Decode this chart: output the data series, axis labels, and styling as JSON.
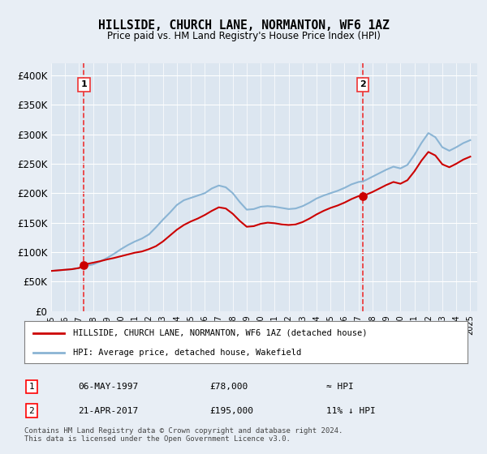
{
  "title": "HILLSIDE, CHURCH LANE, NORMANTON, WF6 1AZ",
  "subtitle": "Price paid vs. HM Land Registry's House Price Index (HPI)",
  "background_color": "#e8eef5",
  "plot_bg_color": "#dce6f0",
  "ylim": [
    0,
    420000
  ],
  "yticks": [
    0,
    50000,
    100000,
    150000,
    200000,
    250000,
    300000,
    350000,
    400000
  ],
  "ytick_labels": [
    "£0",
    "£50K",
    "£100K",
    "£150K",
    "£200K",
    "£250K",
    "£300K",
    "£350K",
    "£400K"
  ],
  "xlim_start": 1995,
  "xlim_end": 2025.5,
  "xticks": [
    1995,
    1996,
    1997,
    1998,
    1999,
    2000,
    2001,
    2002,
    2003,
    2004,
    2005,
    2006,
    2007,
    2008,
    2009,
    2010,
    2011,
    2012,
    2013,
    2014,
    2015,
    2016,
    2017,
    2018,
    2019,
    2020,
    2021,
    2022,
    2023,
    2024,
    2025
  ],
  "hpi_color": "#8ab4d4",
  "sale_color": "#cc0000",
  "dashed_line_color": "#ee3333",
  "marker_color": "#cc0000",
  "legend_line1": "HILLSIDE, CHURCH LANE, NORMANTON, WF6 1AZ (detached house)",
  "legend_line2": "HPI: Average price, detached house, Wakefield",
  "sale1_x": 1997.35,
  "sale1_y": 78000,
  "sale1_label": "1",
  "sale2_x": 2017.31,
  "sale2_y": 195000,
  "sale2_label": "2",
  "table_data": [
    [
      "1",
      "06-MAY-1997",
      "£78,000",
      "≈ HPI"
    ],
    [
      "2",
      "21-APR-2017",
      "£195,000",
      "11% ↓ HPI"
    ]
  ],
  "footer_text": "Contains HM Land Registry data © Crown copyright and database right 2024.\nThis data is licensed under the Open Government Licence v3.0.",
  "hpi_data_x": [
    1995,
    1995.5,
    1996,
    1996.5,
    1997,
    1997.35,
    1997.5,
    1998,
    1998.5,
    1999,
    1999.5,
    2000,
    2000.5,
    2001,
    2001.5,
    2002,
    2002.5,
    2003,
    2003.5,
    2004,
    2004.5,
    2005,
    2005.5,
    2006,
    2006.5,
    2007,
    2007.5,
    2008,
    2008.5,
    2009,
    2009.5,
    2010,
    2010.5,
    2011,
    2011.5,
    2012,
    2012.5,
    2013,
    2013.5,
    2014,
    2014.5,
    2015,
    2015.5,
    2016,
    2016.5,
    2017,
    2017.31,
    2017.5,
    2018,
    2018.5,
    2019,
    2019.5,
    2020,
    2020.5,
    2021,
    2021.5,
    2022,
    2022.5,
    2023,
    2023.5,
    2024,
    2024.5,
    2025
  ],
  "hpi_data_y": [
    68000,
    69000,
    70000,
    71000,
    73000,
    75000,
    76500,
    79000,
    84000,
    90000,
    97000,
    105000,
    112000,
    118000,
    123000,
    130000,
    142000,
    155000,
    167000,
    180000,
    188000,
    192000,
    196000,
    200000,
    208000,
    213000,
    210000,
    200000,
    185000,
    172000,
    173000,
    177000,
    178000,
    177000,
    175000,
    173000,
    174000,
    178000,
    184000,
    191000,
    196000,
    200000,
    204000,
    209000,
    215000,
    219000,
    220000,
    222000,
    228000,
    234000,
    240000,
    245000,
    242000,
    248000,
    265000,
    285000,
    302000,
    295000,
    278000,
    272000,
    278000,
    285000,
    290000
  ],
  "sale_line_x": [
    1995,
    1995.5,
    1996,
    1996.5,
    1997,
    1997.35,
    1997.5,
    1998,
    1998.5,
    1999,
    1999.5,
    2000,
    2000.5,
    2001,
    2001.5,
    2002,
    2002.5,
    2003,
    2003.5,
    2004,
    2004.5,
    2005,
    2005.5,
    2006,
    2006.5,
    2007,
    2007.5,
    2008,
    2008.5,
    2009,
    2009.5,
    2010,
    2010.5,
    2011,
    2011.5,
    2012,
    2012.5,
    2013,
    2013.5,
    2014,
    2014.5,
    2015,
    2015.5,
    2016,
    2016.5,
    2017,
    2017.31,
    2017.5,
    2018,
    2018.5,
    2019,
    2019.5,
    2020,
    2020.5,
    2021,
    2021.5,
    2022,
    2022.5,
    2023,
    2023.5,
    2024,
    2024.5,
    2025
  ],
  "sale_line_y": [
    68000,
    69000,
    70000,
    71000,
    73000,
    78000,
    79500,
    82000,
    84500,
    87500,
    90000,
    93000,
    96000,
    99000,
    101000,
    105000,
    110000,
    118000,
    128000,
    138000,
    146000,
    152000,
    157000,
    163000,
    170000,
    176000,
    174000,
    165000,
    153000,
    143000,
    144000,
    148000,
    150000,
    149000,
    147000,
    146000,
    147000,
    151000,
    157000,
    164000,
    170000,
    175000,
    179000,
    184000,
    190000,
    195000,
    195000,
    197000,
    202000,
    208000,
    214000,
    219000,
    216000,
    222000,
    237000,
    255000,
    270000,
    264000,
    249000,
    244000,
    250000,
    257000,
    262000
  ]
}
